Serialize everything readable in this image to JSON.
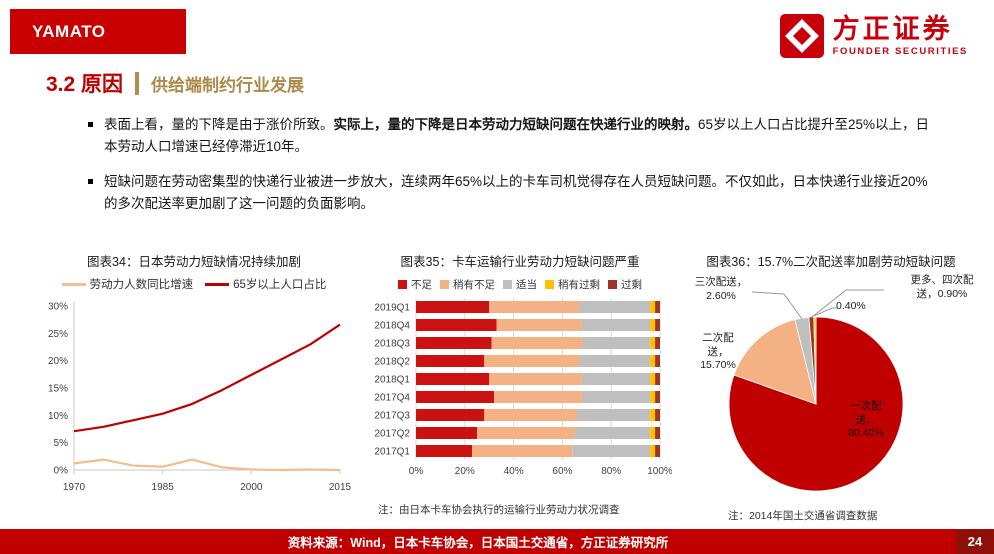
{
  "header": {
    "brand": "YAMATO",
    "logo_cn": "方正证券",
    "logo_en": "FOUNDER SECURITIES"
  },
  "title": {
    "section": "3.2 原因",
    "subtitle": "供给端制约行业发展"
  },
  "bullets": [
    {
      "pre": "表面上看，量的下降是由于涨价所致。",
      "bold": "实际上，量的下降是日本劳动力短缺问题在快递行业的映射。",
      "post": "65岁以上人口占比提升至25%以上，日本劳动人口增速已经停滞近10年。"
    },
    {
      "pre": "短缺问题在劳动密集型的快递行业被进一步放大，连续两年65%以上的卡车司机觉得存在人员短缺问题。不仅如此，日本快递行业接近20%的多次配送率更加剧了这一问题的负面影响。",
      "bold": "",
      "post": ""
    }
  ],
  "chart_data": [
    {
      "type": "line",
      "title": "图表34：日本劳动力短缺情况持续加剧",
      "x": [
        1970,
        1975,
        1980,
        1985,
        1990,
        1995,
        2000,
        2005,
        2010,
        2015
      ],
      "xticks": [
        1970,
        1985,
        2000,
        2015
      ],
      "ylim": [
        0,
        30
      ],
      "yticks": [
        "0%",
        "5%",
        "10%",
        "15%",
        "20%",
        "25%",
        "30%"
      ],
      "legend_position": "top",
      "grid": false,
      "series": [
        {
          "name": "劳动力人数同比增速",
          "color": "#f3bd8e",
          "values": [
            1.2,
            1.9,
            0.8,
            0.6,
            1.9,
            0.5,
            0.1,
            0.0,
            0.1,
            0.0
          ]
        },
        {
          "name": "65岁以上人口占比",
          "color": "#c00000",
          "values": [
            7.1,
            7.9,
            9.1,
            10.3,
            12.1,
            14.6,
            17.4,
            20.2,
            23.0,
            26.6
          ]
        }
      ]
    },
    {
      "type": "bar",
      "orientation": "horizontal-stacked",
      "title": "图表35：卡车运输行业劳动力短缺问题严重",
      "categories": [
        "2019Q1",
        "2018Q4",
        "2018Q3",
        "2018Q2",
        "2018Q1",
        "2017Q4",
        "2017Q3",
        "2017Q2",
        "2017Q1"
      ],
      "xticks": [
        "0%",
        "20%",
        "40%",
        "60%",
        "80%",
        "100%"
      ],
      "xlim": [
        0,
        100
      ],
      "legend_position": "top",
      "grid": true,
      "series": [
        {
          "name": "不足",
          "color": "#cc1111",
          "values": [
            30,
            33,
            31,
            28,
            30,
            32,
            28,
            25,
            23
          ]
        },
        {
          "name": "稍有不足",
          "color": "#f4b183",
          "values": [
            37,
            35,
            37,
            39,
            38,
            36,
            38,
            40,
            41
          ]
        },
        {
          "name": "适当",
          "color": "#bfbfbf",
          "values": [
            29,
            28,
            28,
            29,
            28,
            28,
            30,
            31,
            32
          ]
        },
        {
          "name": "稍有过剩",
          "color": "#ffc000",
          "values": [
            2,
            2,
            2,
            2,
            2,
            2,
            2,
            2,
            2
          ]
        },
        {
          "name": "过剩",
          "color": "#9e3526",
          "values": [
            2,
            2,
            2,
            2,
            2,
            2,
            2,
            2,
            2
          ]
        }
      ],
      "note": "注：由日本卡车协会执行的运输行业劳动力状况调查"
    },
    {
      "type": "pie",
      "title": "图表36：15.7%二次配送率加剧劳动短缺问题",
      "slices": [
        {
          "label": "一次配送",
          "value": 80.4,
          "color": "#c00000",
          "display": "一次配送，80.40%"
        },
        {
          "label": "二次配送",
          "value": 15.7,
          "color": "#f4b183",
          "display": "二次配送，15.70%"
        },
        {
          "label": "三次配送",
          "value": 2.6,
          "color": "#bfbfbf",
          "display": "三次配送，2.60%"
        },
        {
          "label": "更多、四次配送",
          "value": 0.9,
          "color": "#9e3526",
          "display": "更多、四次配送，0.90%"
        },
        {
          "label": "",
          "value": 0.4,
          "color": "#ffc000",
          "display": "0.40%"
        }
      ],
      "note": "注：2014年国土交通省调查数据"
    }
  ],
  "footer": {
    "source": "资料来源：Wind，日本卡车协会，日本国土交通省，方正证券研究所",
    "page": "24"
  }
}
